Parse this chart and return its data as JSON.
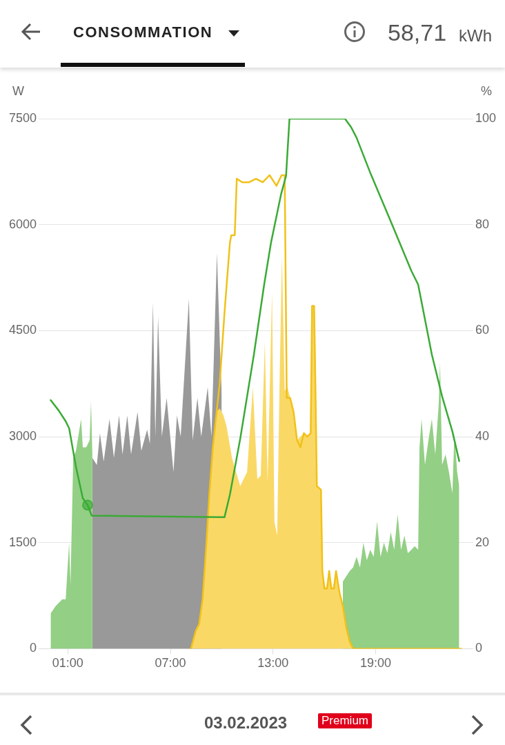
{
  "chart_data": {
    "type": "area",
    "title": "CONSOMMATION",
    "ylabel": "W",
    "y2label": "%",
    "annotations": [
      "58,71",
      "kWh",
      "03.02.2023",
      "Premium"
    ],
    "xlim": [
      -0.7,
      24.7
    ],
    "xticks": [
      {
        "value": 1,
        "label": "01:00"
      },
      {
        "value": 7,
        "label": "07:00"
      },
      {
        "value": 13,
        "label": "13:00"
      },
      {
        "value": 19,
        "label": "19:00"
      }
    ],
    "ylim": [
      0,
      7500
    ],
    "yticks": [
      0,
      1500,
      3000,
      4500,
      6000,
      7500
    ],
    "y2lim": [
      0,
      100
    ],
    "y2ticks": [
      0,
      20,
      40,
      60,
      80,
      100
    ],
    "grid": "y",
    "legend": false,
    "series": [
      {
        "color": "#999999",
        "x": [
          2.44,
          2.7,
          2.88,
          3.1,
          3.44,
          3.7,
          4.0,
          4.2,
          4.48,
          4.7,
          5.08,
          5.3,
          5.64,
          5.8,
          5.98,
          6.12,
          6.28,
          6.5,
          6.78,
          7.18,
          7.38,
          7.6,
          8.08,
          8.3,
          8.58,
          8.8,
          9.18,
          9.4,
          9.72,
          9.9,
          10.0
        ],
        "values": [
          2700,
          2600,
          3050,
          2650,
          3250,
          2700,
          3300,
          2750,
          3300,
          2750,
          3350,
          2800,
          3100,
          2900,
          4900,
          3000,
          4700,
          3000,
          3550,
          2500,
          3300,
          3000,
          4950,
          2950,
          3550,
          3000,
          3700,
          3000,
          5600,
          4250,
          3600
        ]
      },
      {
        "color": "#93cf85",
        "x": [
          0,
          0.28,
          0.68,
          0.88,
          1.08,
          1.16,
          1.32,
          1.48,
          1.78,
          1.88,
          2.08,
          2.28,
          2.36,
          2.44
        ],
        "values": [
          500,
          600,
          700,
          700,
          1500,
          900,
          2700,
          2800,
          3250,
          2850,
          2850,
          2950,
          3500,
          2750
        ]
      },
      {
        "color": "#93cf85",
        "x": [
          17.08,
          17.48,
          17.68,
          17.88,
          18.08,
          18.28,
          18.48,
          18.68,
          18.88,
          19.08,
          19.28,
          19.48,
          19.68,
          19.88,
          20.08,
          20.28,
          20.48,
          20.68,
          20.88,
          21.08,
          21.28,
          21.48,
          21.56,
          21.68,
          21.88,
          22.08,
          22.28,
          22.48,
          22.68,
          22.76,
          22.88,
          23.08,
          23.28,
          23.48,
          23.6,
          23.76,
          23.88
        ],
        "values": [
          950,
          1100,
          1150,
          1300,
          1150,
          1500,
          1250,
          1400,
          1300,
          1800,
          1300,
          1500,
          1350,
          1650,
          1400,
          1900,
          1400,
          1600,
          1350,
          1400,
          1450,
          1400,
          2850,
          3250,
          2600,
          2950,
          3250,
          2750,
          3450,
          4050,
          2600,
          2750,
          2500,
          2200,
          3050,
          2500,
          2300
        ]
      },
      {
        "color": "#f9d866",
        "x": [
          8.2,
          8.48,
          8.68,
          8.88,
          9.08,
          9.28,
          9.48,
          9.68,
          9.88,
          10.1,
          10.28,
          10.6,
          11.08,
          11.48,
          11.82,
          12.08,
          12.28,
          12.52,
          12.68,
          12.94,
          13.08,
          13.24,
          13.38,
          13.52,
          13.68,
          13.84,
          14.0,
          14.2,
          14.4,
          14.8,
          15.0,
          15.2,
          15.28,
          15.4,
          15.48,
          15.56,
          15.8,
          15.88,
          16.08,
          16.28,
          16.48,
          16.68,
          16.88,
          17.08,
          17.28,
          17.48,
          17.68
        ],
        "values": [
          0,
          250,
          350,
          700,
          1400,
          2200,
          2850,
          3350,
          3400,
          3300,
          3150,
          2700,
          2300,
          2500,
          3700,
          2400,
          2450,
          4350,
          2350,
          5050,
          1800,
          1600,
          3750,
          5550,
          3650,
          3700,
          3550,
          3350,
          2950,
          3050,
          3000,
          3050,
          4850,
          4850,
          3650,
          2300,
          2250,
          1100,
          850,
          1100,
          850,
          1100,
          800,
          600,
          300,
          100,
          0
        ]
      },
      {
        "type": "line",
        "color": "#f1c119",
        "x": [
          8.2,
          8.48,
          8.68,
          8.88,
          9.08,
          9.28,
          9.48,
          9.88,
          10.16,
          10.48,
          10.56,
          10.76,
          10.88,
          11.2,
          11.6,
          12.0,
          12.4,
          12.8,
          13.2,
          13.5,
          13.68,
          13.8,
          14.0,
          14.2,
          14.4,
          14.6,
          14.8,
          15.0,
          15.2,
          15.28,
          15.4,
          15.48,
          15.56,
          15.8,
          15.88,
          16.0,
          16.16,
          16.28,
          16.4,
          16.56,
          16.68,
          16.88,
          17.08,
          17.28,
          17.48,
          17.68,
          24.0
        ],
        "values": [
          0,
          250,
          350,
          700,
          1400,
          2200,
          2850,
          3750,
          4750,
          5750,
          5850,
          5850,
          6650,
          6600,
          6600,
          6650,
          6600,
          6700,
          6550,
          6700,
          6700,
          3550,
          3550,
          3350,
          2950,
          2850,
          3050,
          3000,
          3050,
          4850,
          4850,
          3650,
          2300,
          2250,
          1100,
          850,
          850,
          1100,
          850,
          850,
          1100,
          800,
          600,
          300,
          100,
          0,
          0
        ]
      },
      {
        "type": "line",
        "color": "#3aaa35",
        "axis": "y2",
        "x": [
          0,
          0.48,
          0.88,
          1.08,
          1.48,
          1.88,
          2.16,
          2.4,
          10.16,
          10.48,
          11.08,
          11.88,
          12.48,
          12.88,
          13.48,
          13.76,
          13.96,
          17.2,
          17.56,
          17.88,
          18.68,
          19.88,
          21.08,
          21.48,
          22.28,
          22.88,
          23.48,
          23.88
        ],
        "values": [
          46.9,
          44.9,
          42.9,
          41.6,
          34.3,
          28.4,
          27.1,
          25.1,
          24.8,
          29.1,
          39.6,
          55.5,
          68.7,
          76.6,
          85.9,
          89.2,
          100,
          100,
          98.4,
          96.4,
          89.8,
          80.6,
          71.3,
          68.7,
          55.5,
          47.6,
          41,
          35.4
        ]
      },
      {
        "type": "scatter",
        "color": "#3aaa35",
        "axis": "y2",
        "marker": "circle",
        "x": [
          2.16
        ],
        "values": [
          27.1
        ]
      }
    ]
  }
}
